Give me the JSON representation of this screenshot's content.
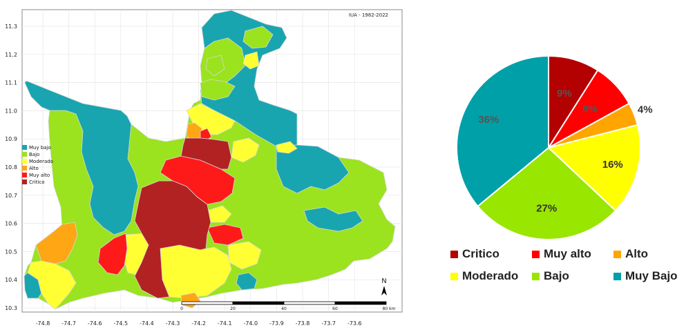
{
  "map": {
    "title": "IUA - 1982-2022",
    "x_ticks": [
      "-74.8",
      "-74.7",
      "-74.6",
      "-74.5",
      "-74.4",
      "-74.3",
      "-74.2",
      "-74.1",
      "-74.0",
      "-73.9",
      "-73.8",
      "-73.7",
      "-73.6"
    ],
    "y_ticks": [
      "11.3",
      "11.2",
      "11.1",
      "11.0",
      "10.9",
      "10.8",
      "10.7",
      "10.6",
      "10.5",
      "10.4",
      "10.3"
    ],
    "legend": [
      {
        "label": "Muy bajo",
        "color": "#18a5b0"
      },
      {
        "label": "Bajo",
        "color": "#9be31f"
      },
      {
        "label": "Moderado",
        "color": "#ffff33"
      },
      {
        "label": "Alto",
        "color": "#ffa614"
      },
      {
        "label": "Muy alto",
        "color": "#ff1a1a"
      },
      {
        "label": "Critico",
        "color": "#b22222"
      }
    ],
    "scale": {
      "labels": [
        "0",
        "20",
        "40",
        "60",
        "80 km"
      ]
    },
    "north_label": "N"
  },
  "chart_data": {
    "type": "pie",
    "title": "",
    "slices": [
      {
        "label": "Critico",
        "value": 9,
        "display": "9%",
        "color": "#b30000"
      },
      {
        "label": "Muy alto",
        "value": 8,
        "display": "8%",
        "color": "#ff0000"
      },
      {
        "label": "Alto",
        "value": 4,
        "display": "4%",
        "color": "#ffa500"
      },
      {
        "label": "Moderado",
        "value": 16,
        "display": "16%",
        "color": "#ffff00"
      },
      {
        "label": "Bajo",
        "value": 27,
        "display": "27%",
        "color": "#99e600"
      },
      {
        "label": "Muy Bajo",
        "value": 36,
        "display": "36%",
        "color": "#00a0a8"
      }
    ],
    "legend_rows": [
      [
        {
          "label": "Critico",
          "color": "#b30000"
        },
        {
          "label": "Muy alto",
          "color": "#ff0000"
        },
        {
          "label": "Alto",
          "color": "#ffa500"
        }
      ],
      [
        {
          "label": "Moderado",
          "color": "#ffff00"
        },
        {
          "label": "Bajo",
          "color": "#99e600"
        },
        {
          "label": "Muy Bajo",
          "color": "#00a0a8"
        }
      ]
    ]
  }
}
